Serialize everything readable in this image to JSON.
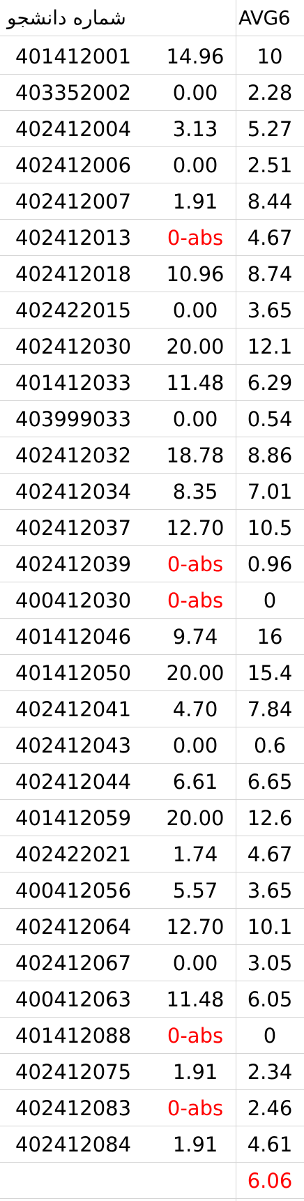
{
  "header": {
    "student_id_label": "شماره دانشجو",
    "score_label": "",
    "avg_label": "AVG6"
  },
  "rows": [
    {
      "id": "401412001",
      "score": "14.96",
      "avg": "10"
    },
    {
      "id": "403352002",
      "score": "0.00",
      "avg": "2.28"
    },
    {
      "id": "402412004",
      "score": "3.13",
      "avg": "5.27"
    },
    {
      "id": "402412006",
      "score": "0.00",
      "avg": "2.51"
    },
    {
      "id": "402412007",
      "score": "1.91",
      "avg": "8.44"
    },
    {
      "id": "402412013",
      "score": "0-abs",
      "avg": "4.67",
      "absent": true
    },
    {
      "id": "402412018",
      "score": "10.96",
      "avg": "8.74"
    },
    {
      "id": "402422015",
      "score": "0.00",
      "avg": "3.65"
    },
    {
      "id": "402412030",
      "score": "20.00",
      "avg": "12.1"
    },
    {
      "id": "401412033",
      "score": "11.48",
      "avg": "6.29"
    },
    {
      "id": "403999033",
      "score": "0.00",
      "avg": "0.54"
    },
    {
      "id": "402412032",
      "score": "18.78",
      "avg": "8.86"
    },
    {
      "id": "402412034",
      "score": "8.35",
      "avg": "7.01"
    },
    {
      "id": "402412037",
      "score": "12.70",
      "avg": "10.5"
    },
    {
      "id": "402412039",
      "score": "0-abs",
      "avg": "0.96",
      "absent": true
    },
    {
      "id": "400412030",
      "score": "0-abs",
      "avg": "0",
      "absent": true
    },
    {
      "id": "401412046",
      "score": "9.74",
      "avg": "16"
    },
    {
      "id": "401412050",
      "score": "20.00",
      "avg": "15.4"
    },
    {
      "id": "402412041",
      "score": "4.70",
      "avg": "7.84"
    },
    {
      "id": "402412043",
      "score": "0.00",
      "avg": "0.6"
    },
    {
      "id": "402412044",
      "score": "6.61",
      "avg": "6.65"
    },
    {
      "id": "401412059",
      "score": "20.00",
      "avg": "12.6"
    },
    {
      "id": "402422021",
      "score": "1.74",
      "avg": "4.67"
    },
    {
      "id": "400412056",
      "score": "5.57",
      "avg": "3.65"
    },
    {
      "id": "402412064",
      "score": "12.70",
      "avg": "10.1"
    },
    {
      "id": "402412067",
      "score": "0.00",
      "avg": "3.05"
    },
    {
      "id": "400412063",
      "score": "11.48",
      "avg": "6.05"
    },
    {
      "id": "401412088",
      "score": "0-abs",
      "avg": "0",
      "absent": true
    },
    {
      "id": "402412075",
      "score": "1.91",
      "avg": "2.34"
    },
    {
      "id": "402412083",
      "score": "0-abs",
      "avg": "2.46",
      "absent": true
    },
    {
      "id": "402412084",
      "score": "1.91",
      "avg": "4.61"
    }
  ],
  "footer": {
    "avg_total": "6.06"
  },
  "colors": {
    "text": "#000000",
    "absent": "#ff0000",
    "grid": "#d4d4d4"
  }
}
